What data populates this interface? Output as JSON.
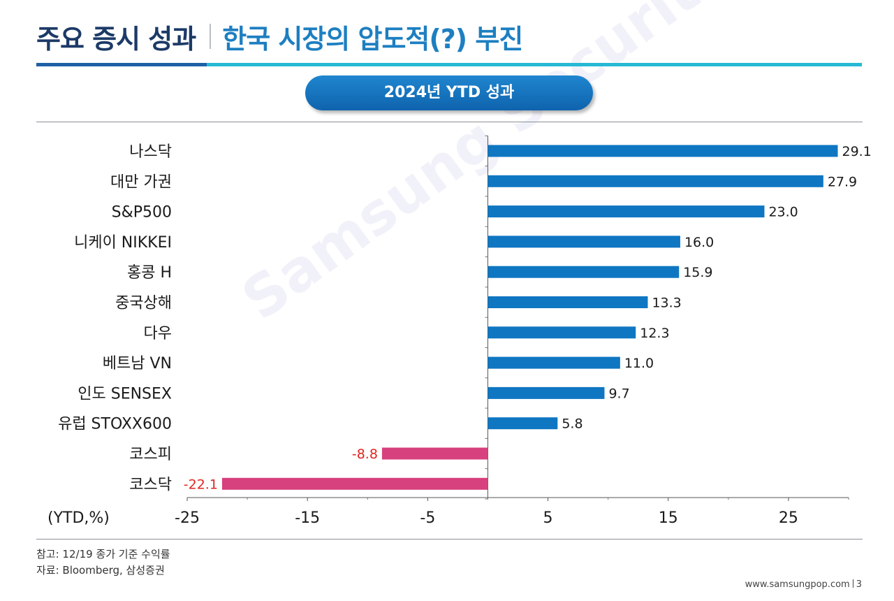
{
  "header": {
    "title": "주요 증시 성과",
    "subtitle": "한국 시장의 압도적(?) 부진"
  },
  "badge": "2024년 YTD 성과",
  "colors": {
    "positive": "#0f76c2",
    "negative": "#d7417d",
    "negative_label": "#e0261f",
    "title_dark": "#1c3a67",
    "title_accent": "#1d7fc1"
  },
  "chart_data": {
    "type": "bar",
    "orientation": "horizontal",
    "categories": [
      "나스닥",
      "대만 가권",
      "S&P500",
      "니케이 NIKKEI",
      "홍콩 H",
      "중국상해",
      "다우",
      "베트남 VN",
      "인도 SENSEX",
      "유럽 STOXX600",
      "코스피",
      "코스닥"
    ],
    "values": [
      29.1,
      27.9,
      23.0,
      16.0,
      15.9,
      13.3,
      12.3,
      11.0,
      9.7,
      5.8,
      -8.8,
      -22.1
    ],
    "value_labels": [
      "29.1",
      "27.9",
      "23.0",
      "16.0",
      "15.9",
      "13.3",
      "12.3",
      "11.0",
      "9.7",
      "5.8",
      "-8.8",
      "-22.1"
    ],
    "xlim": [
      -25,
      30
    ],
    "ticks": [
      -25,
      -15,
      -5,
      5,
      15,
      25
    ],
    "tick_labels": [
      "-25",
      "-15",
      "-5",
      "5",
      "15",
      "25"
    ],
    "unit_label": "(YTD,%)",
    "grid": false,
    "legend": "none"
  },
  "notes": {
    "reference": "참고: 12/19 종가 기준 수익률",
    "source": "자료: Bloomberg, 삼성증권"
  },
  "footer": {
    "site": "www.samsungpop.com",
    "page": "3"
  },
  "watermark": "Samsung Securities"
}
